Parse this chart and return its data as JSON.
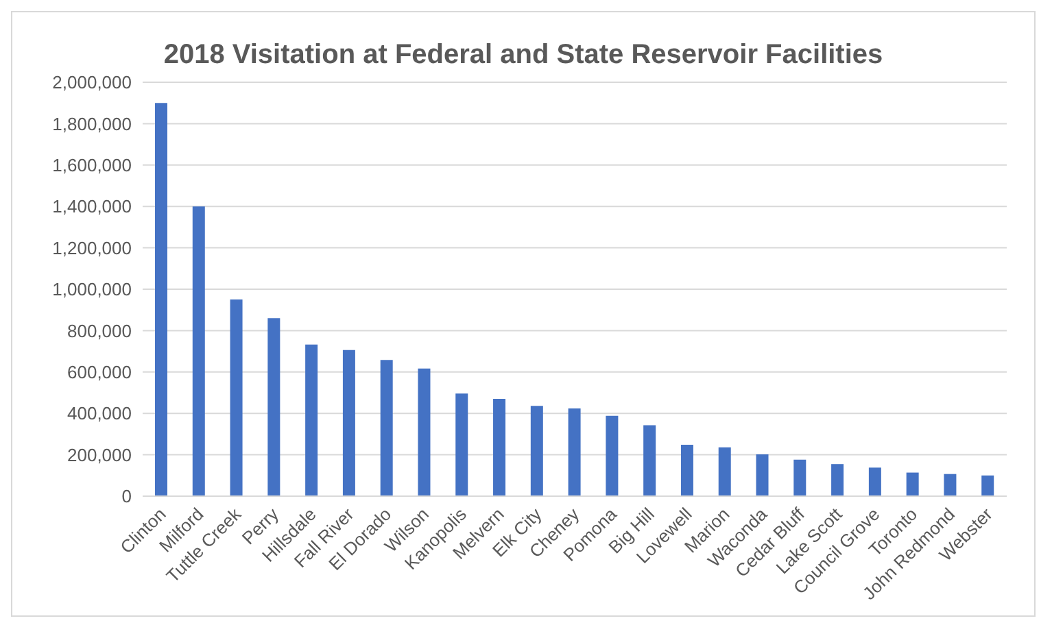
{
  "chart_data": {
    "type": "bar",
    "title": "2018 Visitation at Federal and State Reservoir Facilities",
    "categories": [
      "Clinton",
      "Milford",
      "Tuttle Creek",
      "Perry",
      "Hillsdale",
      "Fall River",
      "El Dorado",
      "Wilson",
      "Kanopolis",
      "Melvern",
      "Elk City",
      "Cheney",
      "Pomona",
      "Big Hill",
      "Lovewell",
      "Marion",
      "Waconda",
      "Cedar Bluff",
      "Lake Scott",
      "Council Grove",
      "Toronto",
      "John Redmond",
      "Webster"
    ],
    "values": [
      1900000,
      1400000,
      950000,
      860000,
      733000,
      706000,
      658000,
      617000,
      496000,
      470000,
      436000,
      424000,
      388000,
      343000,
      248000,
      236000,
      202000,
      176000,
      155000,
      138000,
      114000,
      107000,
      100000
    ],
    "color": "#4472c4",
    "ylim": [
      0,
      2000000
    ],
    "yticks": [
      0,
      {
        "value": 200000,
        "label": "200,000"
      },
      {
        "value": 400000,
        "label": "400,000"
      },
      {
        "value": 600000,
        "label": "600,000"
      },
      {
        "value": 800000,
        "label": "800,000"
      },
      {
        "value": 1000000,
        "label": "1,000,000"
      },
      {
        "value": 1200000,
        "label": "1,200,000"
      },
      {
        "value": 1400000,
        "label": "1,400,000"
      },
      {
        "value": 1600000,
        "label": "1,600,000"
      },
      {
        "value": 1800000,
        "label": "1,800,000"
      },
      {
        "value": 2000000,
        "label": "2,000,000"
      }
    ],
    "grid": "y"
  }
}
